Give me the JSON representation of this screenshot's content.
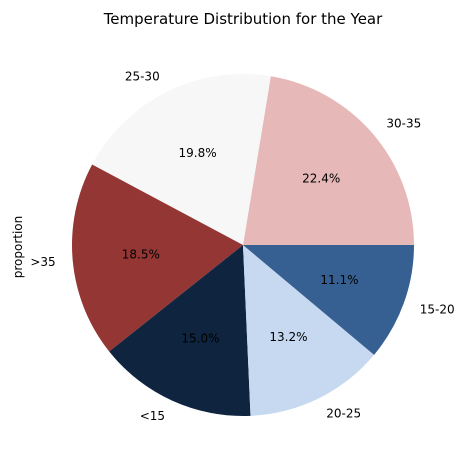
{
  "chart_data": {
    "type": "pie",
    "title": "Temperature Distribution for the Year",
    "ylabel": "proportion",
    "start_angle_deg": 0,
    "direction": "counterclockwise",
    "slices": [
      {
        "label": "30-35",
        "value": 22.4,
        "pct_label": "22.4%",
        "color": "#e6b8b7"
      },
      {
        "label": "25-30",
        "value": 19.8,
        "pct_label": "19.8%",
        "color": "#f7f7f7"
      },
      {
        "label": ">35",
        "value": 18.5,
        "pct_label": "18.5%",
        "color": "#943634"
      },
      {
        "label": "<15",
        "value": 15.0,
        "pct_label": "15.0%",
        "color": "#0f243e"
      },
      {
        "label": "20-25",
        "value": 13.2,
        "pct_label": "13.2%",
        "color": "#c6d9f0"
      },
      {
        "label": "15-20",
        "value": 11.1,
        "pct_label": "11.1%",
        "color": "#366092"
      }
    ]
  }
}
